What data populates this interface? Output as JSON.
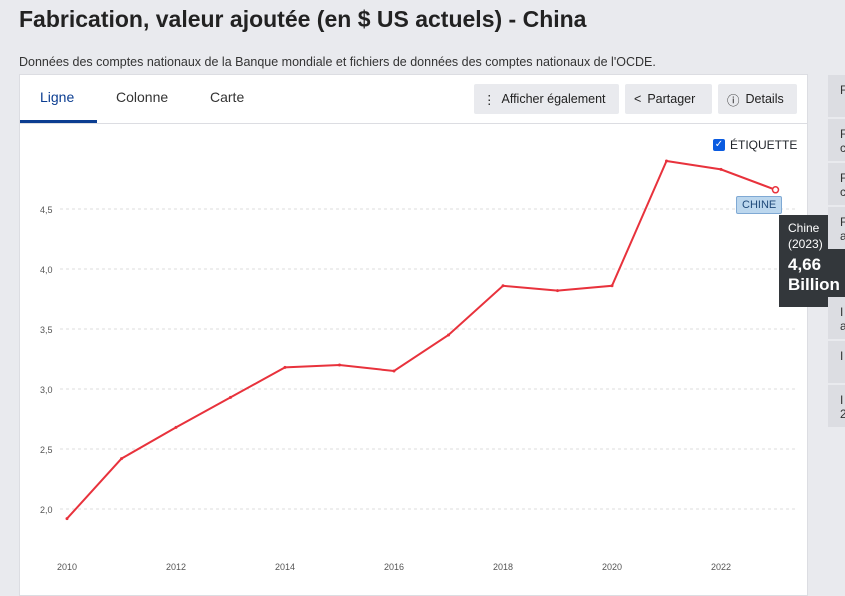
{
  "title": "Fabrication, valeur ajoutée (en $ US actuels) - China",
  "subtitle": "Données des comptes nationaux de la Banque mondiale et fichiers de données des comptes nationaux de l'OCDE.",
  "tabs": [
    "Ligne",
    "Colonne",
    "Carte"
  ],
  "buttons": {
    "show_also": "Afficher également",
    "share": "Partager",
    "details": "Details"
  },
  "label_checkbox": "ÉTIQUETTE",
  "series_label": "CHINE",
  "tooltip": {
    "name": "Chine",
    "year": "(2023)",
    "value": "4,66",
    "unit": "Billion"
  },
  "sidebar": [
    "F",
    "F c",
    "F c",
    "F a",
    "I a",
    "I",
    "I 2"
  ],
  "accent": "#0b3d91",
  "line_color": "#e8323c",
  "chart_data": {
    "type": "line",
    "x": [
      2010,
      2011,
      2012,
      2013,
      2014,
      2015,
      2016,
      2017,
      2018,
      2019,
      2020,
      2021,
      2022,
      2023
    ],
    "series": [
      {
        "name": "Chine",
        "values": [
          1.92,
          2.42,
          2.68,
          2.93,
          3.18,
          3.2,
          3.15,
          3.45,
          3.86,
          3.82,
          3.86,
          4.9,
          4.83,
          4.66
        ]
      }
    ],
    "yticks": [
      "2,0",
      "2,5",
      "3,0",
      "3,5",
      "4,0",
      "4,5"
    ],
    "xticks": [
      "2010",
      "2012",
      "2014",
      "2016",
      "2018",
      "2020",
      "2022"
    ],
    "ylim": [
      1.9,
      5.0
    ],
    "grid": true
  }
}
